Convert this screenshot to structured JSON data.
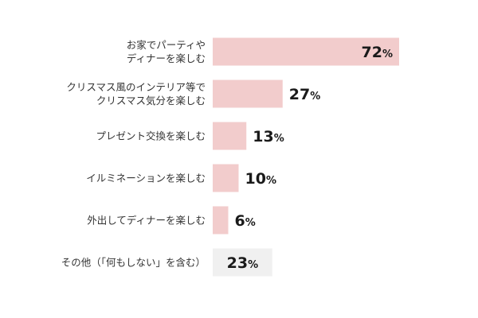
{
  "chart_data": {
    "type": "bar",
    "orientation": "horizontal",
    "categories": [
      [
        "お家でパーティや",
        "ディナーを楽しむ"
      ],
      [
        "クリスマス風のインテリア等で",
        "クリスマス気分を楽しむ"
      ],
      [
        "プレゼント交換を楽しむ"
      ],
      [
        "イルミネーションを楽しむ"
      ],
      [
        "外出してディナーを楽しむ"
      ],
      [
        "その他（「何もしない」を含む）"
      ]
    ],
    "values": [
      72,
      27,
      13,
      10,
      6,
      23
    ],
    "value_labels": [
      "72",
      "27",
      "13",
      "10",
      "6",
      "23"
    ],
    "unit": "%",
    "xlim": [
      0,
      100
    ],
    "bar_colors": [
      "#f2cccc",
      "#f2cccc",
      "#f2cccc",
      "#f2cccc",
      "#f2cccc",
      "#f0f0f0"
    ],
    "value_label_position": [
      "inside",
      "outside",
      "outside",
      "outside",
      "outside",
      "inside"
    ],
    "grid": false,
    "legend": "none"
  }
}
